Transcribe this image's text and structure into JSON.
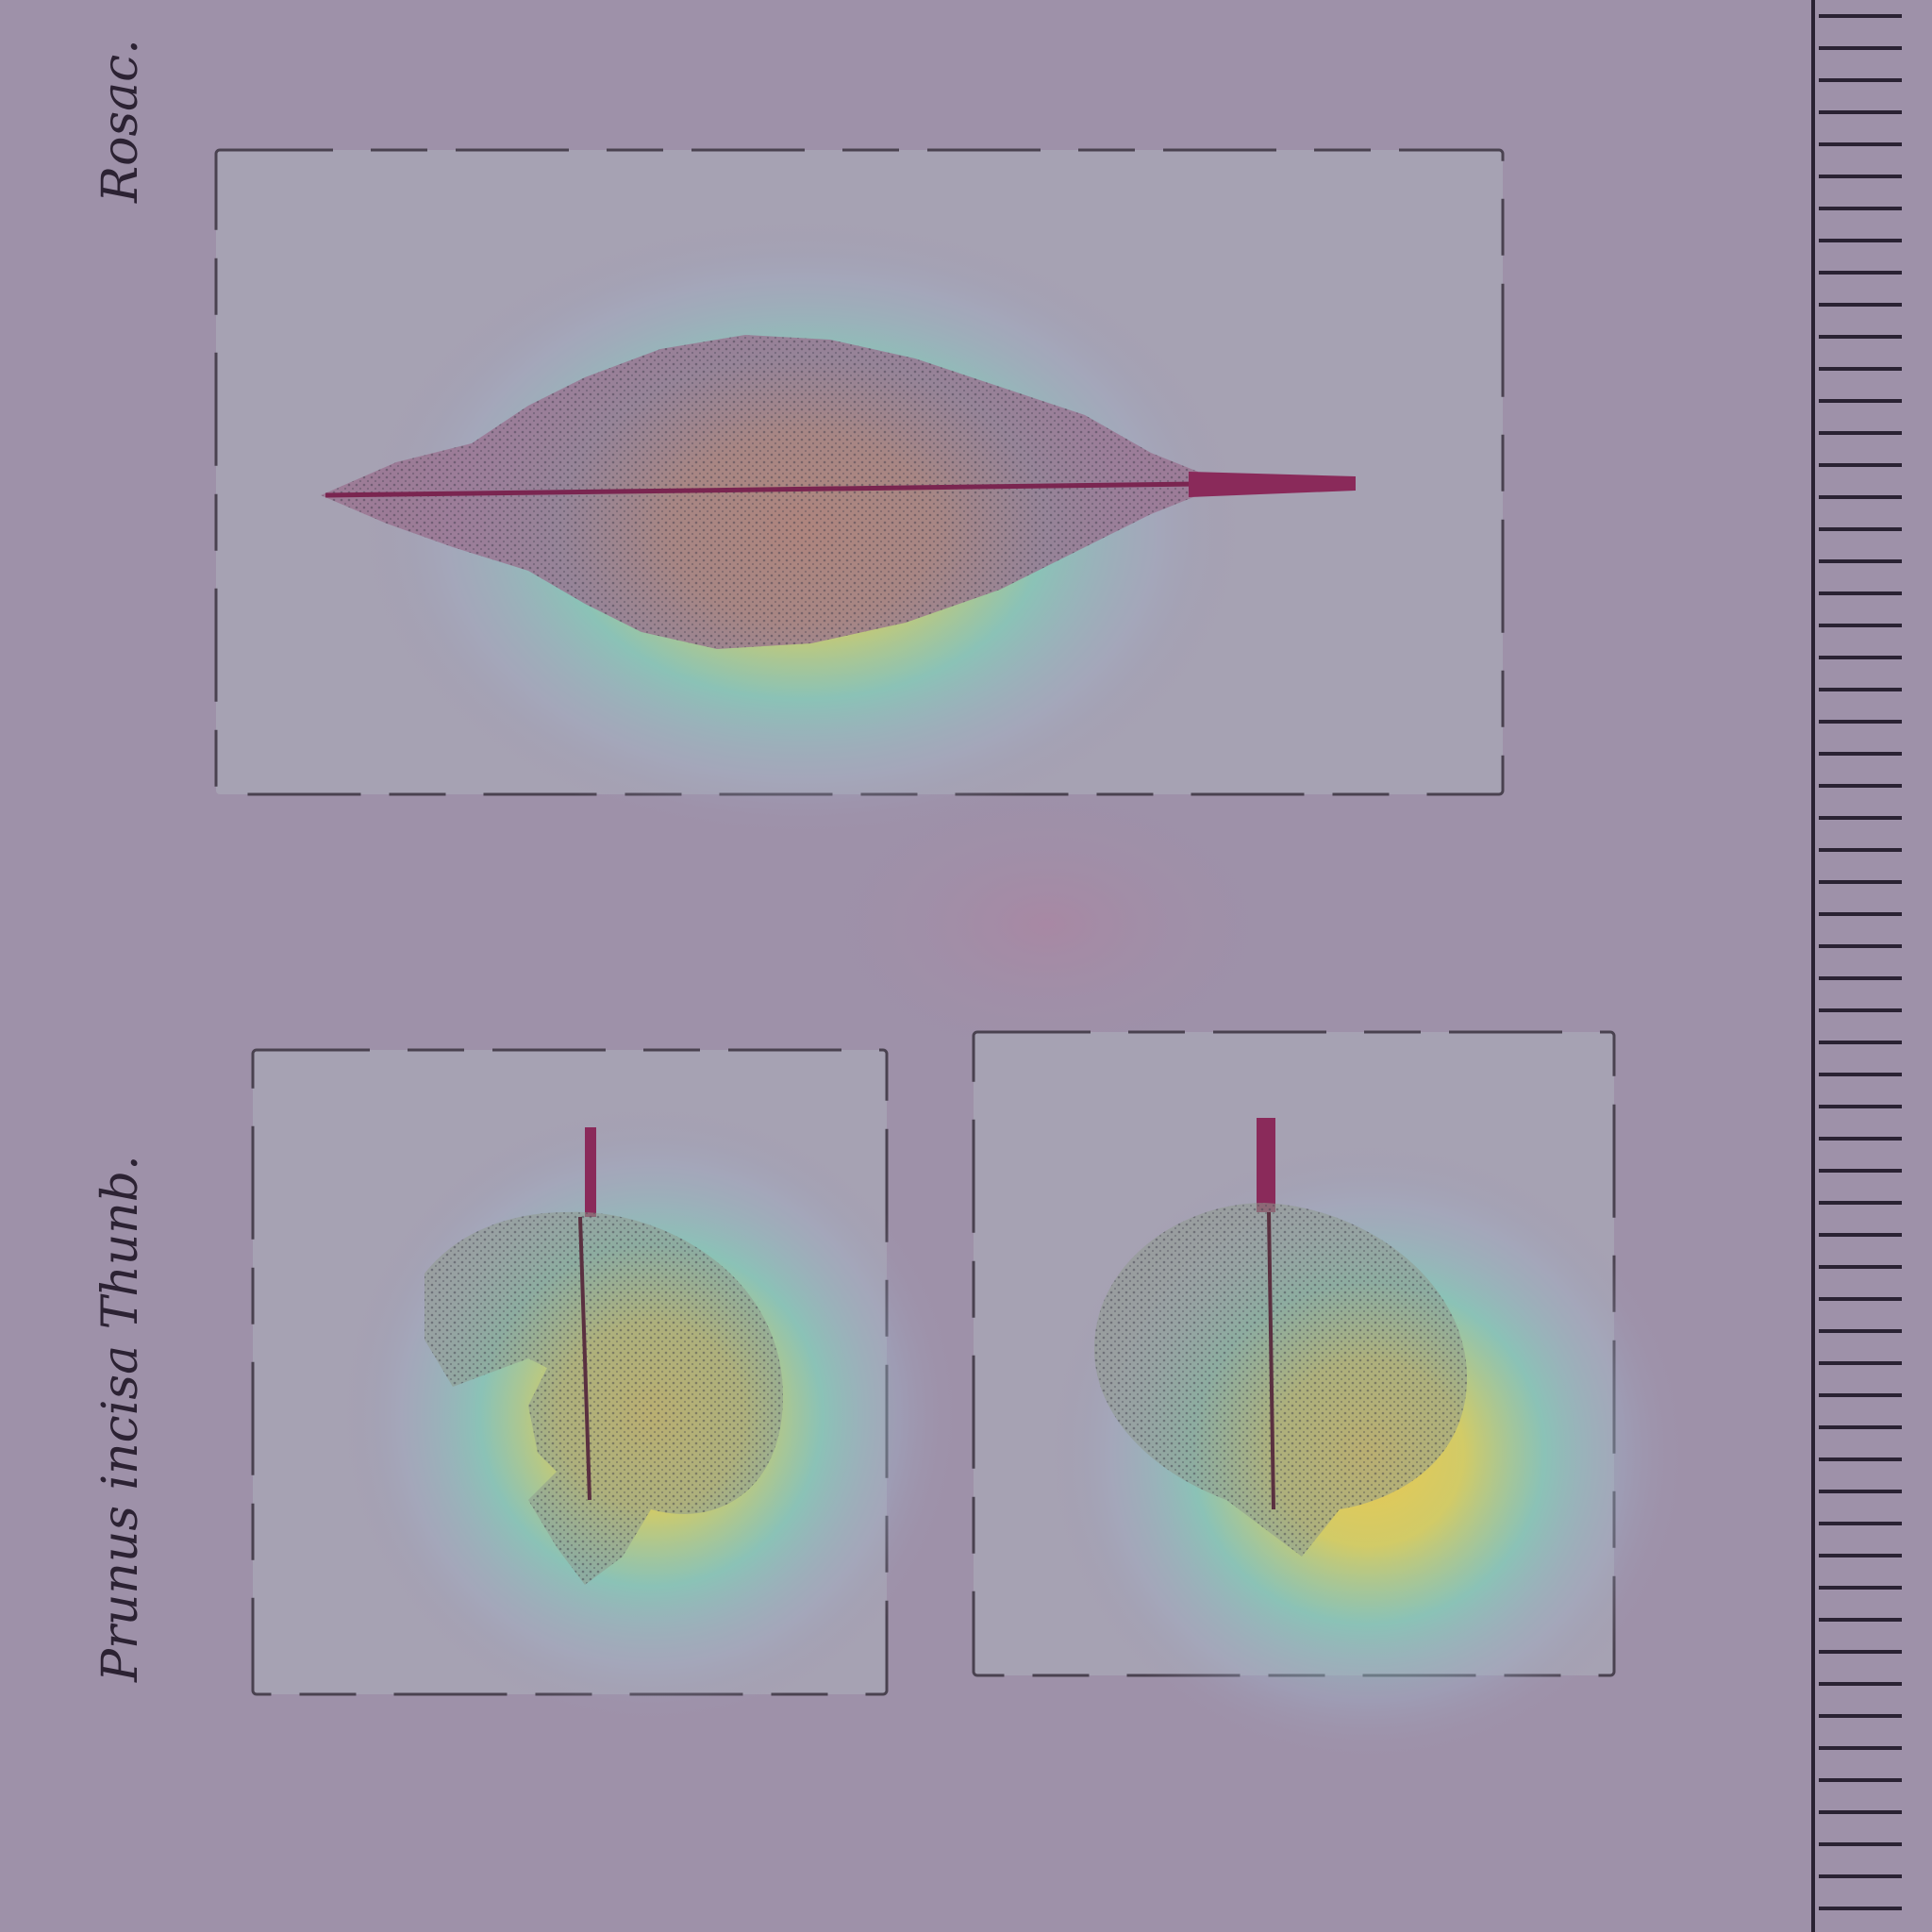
{
  "labels": {
    "family": "Rosac.",
    "species": "Prunus incisa Thunb."
  }
}
